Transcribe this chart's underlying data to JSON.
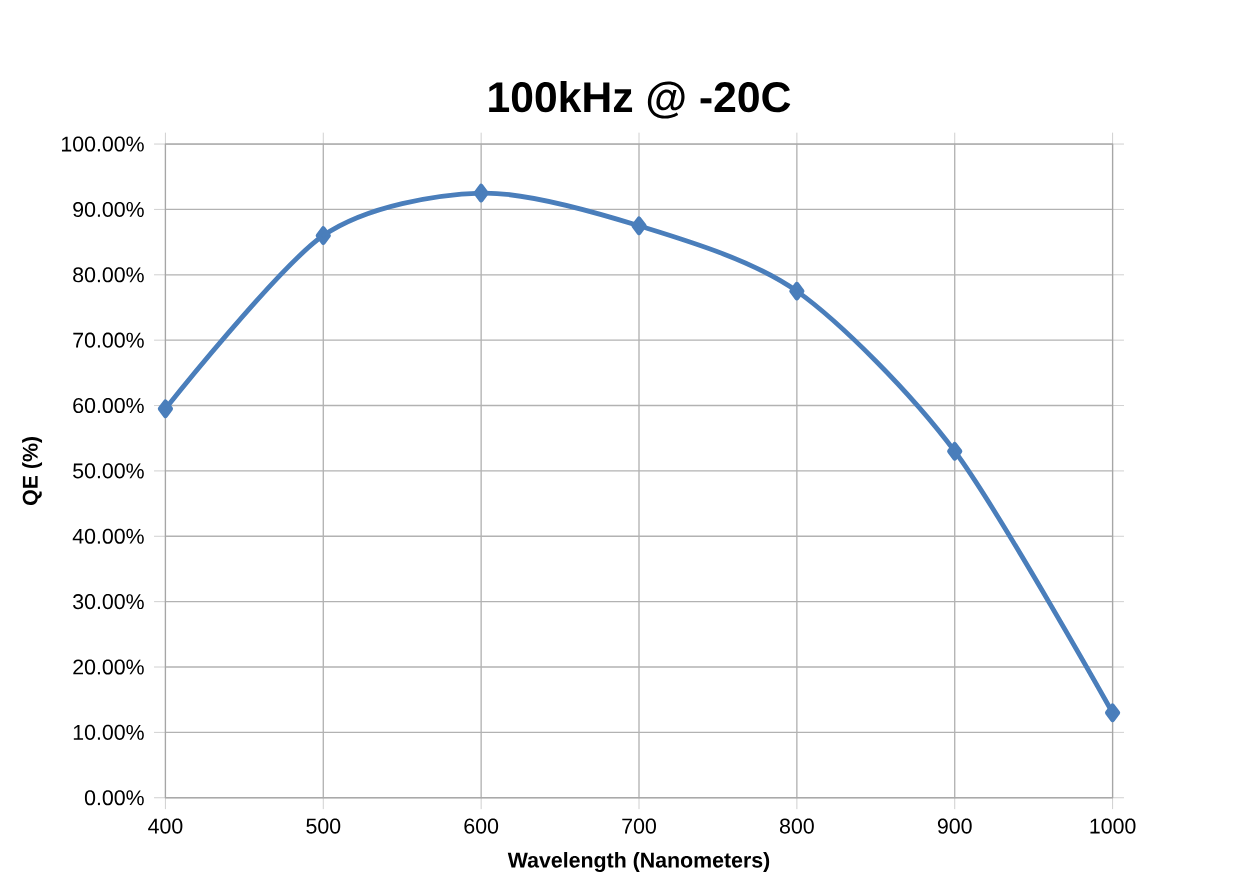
{
  "chart_data": {
    "type": "line",
    "title": "100kHz @ -20C",
    "xlabel": "Wavelength (Nanometers)",
    "ylabel": "QE (%)",
    "x": [
      400,
      500,
      600,
      700,
      800,
      900,
      1000
    ],
    "series": [
      {
        "color": "#4a7ebb",
        "values": [
          59.5,
          86,
          92.5,
          87.5,
          77.5,
          53,
          13
        ]
      }
    ],
    "xlim": [
      400,
      1000
    ],
    "xticks": [
      400,
      500,
      600,
      700,
      800,
      900,
      1000
    ],
    "ylim": [
      0,
      100
    ],
    "yticks": [
      {
        "value": 0,
        "label": "0.00%"
      },
      {
        "value": 10,
        "label": "10.00%"
      },
      {
        "value": 20,
        "label": "20.00%"
      },
      {
        "value": 30,
        "label": "30.00%"
      },
      {
        "value": 40,
        "label": "40.00%"
      },
      {
        "value": 50,
        "label": "50.00%"
      },
      {
        "value": 60,
        "label": "60.00%"
      },
      {
        "value": 70,
        "label": "70.00%"
      },
      {
        "value": 80,
        "label": "80.00%"
      },
      {
        "value": 90,
        "label": "90.00%"
      },
      {
        "value": 100,
        "label": "100.00%"
      }
    ],
    "grid": true,
    "marker": "diamond",
    "line_style": "solid"
  }
}
